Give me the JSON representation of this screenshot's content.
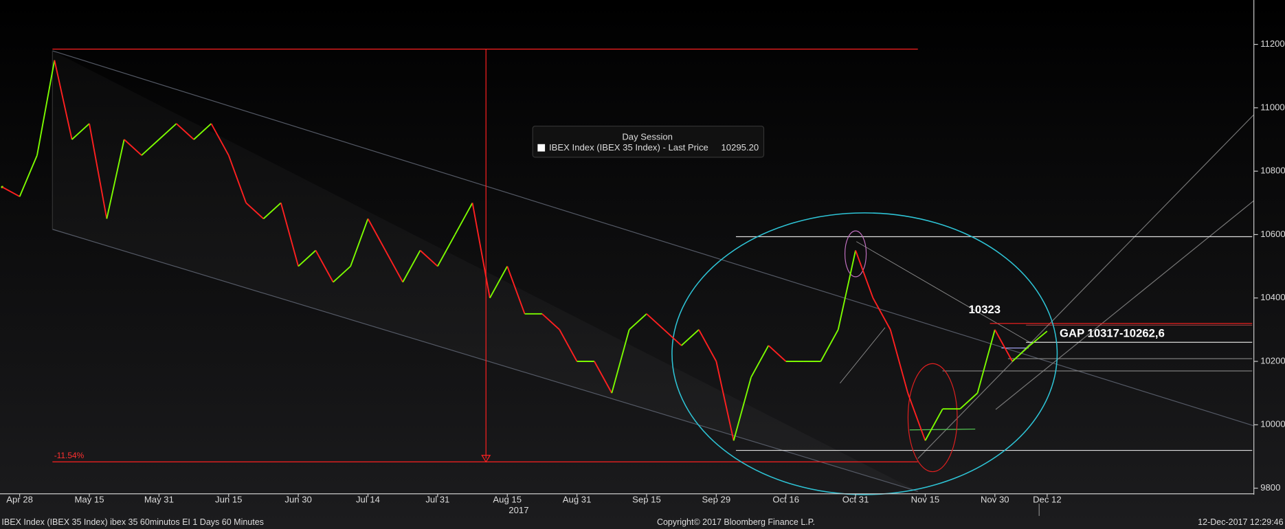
{
  "chart_data": {
    "type": "line",
    "legend_title": "Day Session",
    "series": [
      {
        "name": "IBEX Index (IBEX 35 Index) - Last Price",
        "up_color": "#7cfc00",
        "down_color": "#ff2020",
        "values": [
          10750,
          10720,
          10850,
          11150,
          10900,
          10950,
          10650,
          10900,
          10850,
          10900,
          10950,
          10900,
          10950,
          10850,
          10700,
          10650,
          10700,
          10500,
          10550,
          10450,
          10500,
          10650,
          10550,
          10450,
          10550,
          10500,
          10600,
          10700,
          10400,
          10500,
          10350,
          10350,
          10300,
          10200,
          10200,
          10100,
          10300,
          10350,
          10300,
          10250,
          10300,
          10200,
          9950,
          10150,
          10250,
          10200,
          10200,
          10200,
          10300,
          10550,
          10400,
          10300,
          10100,
          9950,
          10050,
          10050,
          10100,
          10300,
          10200,
          10250,
          10295.2
        ]
      }
    ],
    "last_price": {
      "value": 10295.2,
      "label": "10295.20"
    },
    "categories": [
      null,
      "Apr 28",
      null,
      null,
      null,
      "May 15",
      null,
      null,
      null,
      "May 31",
      null,
      null,
      null,
      "Jun 15",
      null,
      null,
      null,
      "Jun 30",
      null,
      null,
      null,
      "Jul 14",
      null,
      null,
      null,
      "Jul 31",
      null,
      null,
      null,
      "Aug 15",
      null,
      null,
      null,
      "Aug 31",
      null,
      null,
      null,
      "Sep 15",
      null,
      null,
      null,
      "Sep 29",
      null,
      null,
      null,
      "Oct 16",
      null,
      null,
      null,
      "Oct 31",
      null,
      null,
      null,
      "Nov 15",
      null,
      null,
      null,
      "Nov 30",
      null,
      null,
      "Dec 12"
    ],
    "year_label": "2017",
    "ylim": [
      9790,
      11340
    ],
    "yticks": [
      9800,
      10000,
      10200,
      10400,
      10600,
      10800,
      11000,
      11200
    ],
    "annotations": [
      {
        "text": "10323"
      },
      {
        "text": "GAP 10317-10262,6"
      },
      {
        "text": "-11.54%"
      }
    ],
    "footer_left": "IBEX Index (IBEX 35 Index) ibex 35 60minutos EI 1 Days 60 Minutes",
    "footer_center": "Copyright© 2017 Bloomberg Finance L.P.",
    "footer_right": "12-Dec-2017 12:29:46"
  }
}
